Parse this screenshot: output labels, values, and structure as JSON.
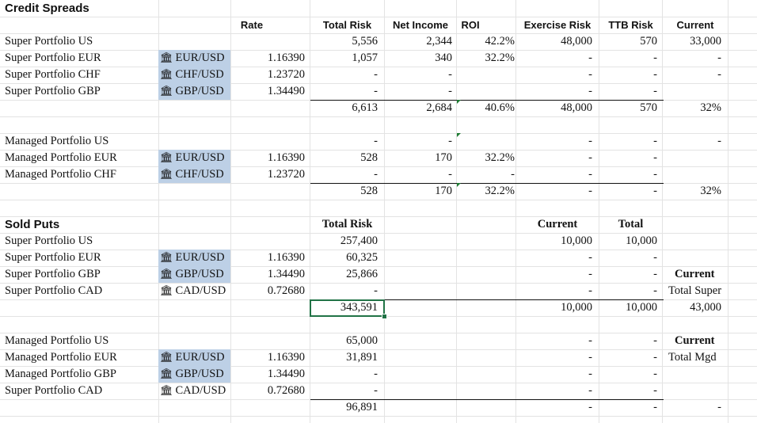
{
  "credit_spreads": {
    "title": "Credit Spreads",
    "headers": {
      "rate": "Rate",
      "total_risk": "Total Risk",
      "net_income": "Net Income",
      "roi": "ROI",
      "exercise_risk": "Exercise Risk",
      "ttb_risk": "TTB Risk",
      "current": "Current"
    },
    "super_rows": [
      {
        "label": "Super Portfolio US",
        "fx": "",
        "rate": "",
        "total_risk": "5,556",
        "net_income": "2,344",
        "roi": "42.2%",
        "exercise_risk": "48,000",
        "ttb_risk": "570",
        "current": "33,000"
      },
      {
        "label": "Super Portfolio EUR",
        "fx": "EUR/USD",
        "rate": "1.16390",
        "total_risk": "1,057",
        "net_income": "340",
        "roi": "32.2%",
        "exercise_risk": "-",
        "ttb_risk": "-",
        "current": "-"
      },
      {
        "label": "Super Portfolio CHF",
        "fx": "CHF/USD",
        "rate": "1.23720",
        "total_risk": "-",
        "net_income": "-",
        "roi": "",
        "exercise_risk": "-",
        "ttb_risk": "-",
        "current": "-"
      },
      {
        "label": "Super Portfolio GBP",
        "fx": "GBP/USD",
        "rate": "1.34490",
        "total_risk": "-",
        "net_income": "-",
        "roi": "",
        "exercise_risk": "-",
        "ttb_risk": "-",
        "current": ""
      }
    ],
    "super_total": {
      "total_risk": "6,613",
      "net_income": "2,684",
      "roi": "40.6%",
      "exercise_risk": "48,000",
      "ttb_risk": "570",
      "current": "32%"
    },
    "managed_rows": [
      {
        "label": "Managed Portfolio US",
        "fx": "",
        "rate": "",
        "total_risk": "-",
        "net_income": "-",
        "roi": "",
        "exercise_risk": "-",
        "ttb_risk": "-",
        "current": "-"
      },
      {
        "label": "Managed Portfolio EUR",
        "fx": "EUR/USD",
        "rate": "1.16390",
        "total_risk": "528",
        "net_income": "170",
        "roi": "32.2%",
        "exercise_risk": "-",
        "ttb_risk": "-",
        "current": ""
      },
      {
        "label": "Managed Portfolio CHF",
        "fx": "CHF/USD",
        "rate": "1.23720",
        "total_risk": "-",
        "net_income": "-",
        "roi": "-",
        "exercise_risk": "-",
        "ttb_risk": "-",
        "current": ""
      }
    ],
    "managed_total": {
      "total_risk": "528",
      "net_income": "170",
      "roi": "32.2%",
      "exercise_risk": "-",
      "ttb_risk": "-",
      "current": "32%"
    }
  },
  "sold_puts": {
    "title": "Sold Puts",
    "headers": {
      "total_risk": "Total Risk",
      "current": "Current",
      "total": "Total"
    },
    "super_rows": [
      {
        "label": "Super Portfolio US",
        "fx": "",
        "rate": "",
        "total_risk": "257,400",
        "current": "10,000",
        "total": "10,000",
        "side": ""
      },
      {
        "label": "Super Portfolio EUR",
        "fx": "EUR/USD",
        "rate": "1.16390",
        "total_risk": "60,325",
        "current": "-",
        "total": "-",
        "side": ""
      },
      {
        "label": "Super Portfolio GBP",
        "fx": "GBP/USD",
        "rate": "1.34490",
        "total_risk": "25,866",
        "current": "-",
        "total": "-",
        "side": "Current"
      },
      {
        "label": "Super Portfolio CAD",
        "fx": "CAD/USD",
        "rate": "0.72680",
        "total_risk": "-",
        "current": "-",
        "total": "-",
        "side": "Total Super"
      }
    ],
    "super_total": {
      "total_risk": "343,591",
      "current": "10,000",
      "total": "10,000",
      "side": "43,000"
    },
    "managed_rows": [
      {
        "label": "Managed Portfolio US",
        "fx": "",
        "rate": "",
        "total_risk": "65,000",
        "current": "-",
        "total": "-",
        "side": "Current"
      },
      {
        "label": "Managed Portfolio EUR",
        "fx": "EUR/USD",
        "rate": "1.16390",
        "total_risk": "31,891",
        "current": "-",
        "total": "-",
        "side": "Total Mgd"
      },
      {
        "label": "Managed Portfolio GBP",
        "fx": "GBP/USD",
        "rate": "1.34490",
        "total_risk": "-",
        "current": "-",
        "total": "-",
        "side": ""
      },
      {
        "label": "Super Portfolio CAD",
        "fx": "CAD/USD",
        "rate": "0.72680",
        "total_risk": "-",
        "current": "-",
        "total": "-",
        "side": ""
      }
    ],
    "managed_total": {
      "total_risk": "96,891",
      "current": "-",
      "total": "-",
      "side": "-"
    }
  },
  "colors": {
    "fx_cell_fill": "#bdd0e6",
    "selection": "#217346",
    "grid": "#e3e3e3"
  },
  "icons": {
    "fx_cell": "bank-icon"
  }
}
